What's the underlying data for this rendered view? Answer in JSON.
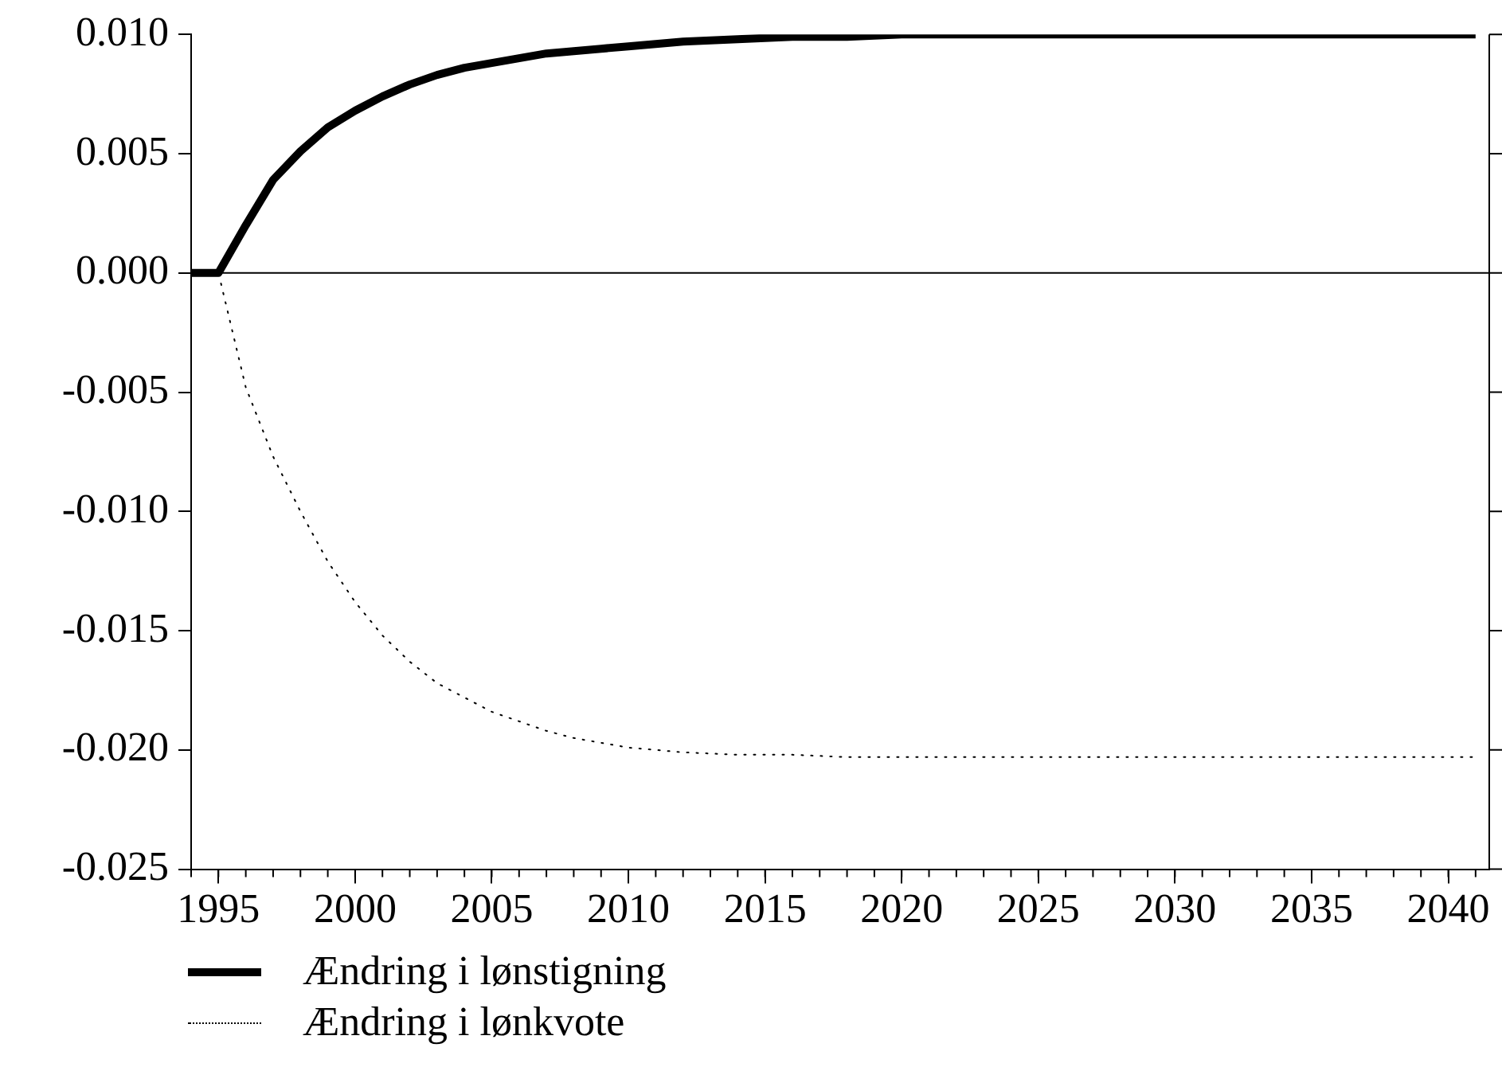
{
  "chart_data": {
    "type": "line",
    "x": [
      1994,
      1995,
      1996,
      1997,
      1998,
      1999,
      2000,
      2001,
      2002,
      2003,
      2004,
      2005,
      2006,
      2007,
      2008,
      2009,
      2010,
      2012,
      2014,
      2016,
      2018,
      2020,
      2025,
      2030,
      2035,
      2041
    ],
    "series": [
      {
        "name": "Ændring i lønstigning",
        "color": "#000000",
        "line_style": "solid",
        "values": [
          0,
          0,
          0.002,
          0.0039,
          0.0051,
          0.0061,
          0.0068,
          0.0074,
          0.0079,
          0.0083,
          0.0086,
          0.0088,
          0.009,
          0.0092,
          0.0093,
          0.0094,
          0.0095,
          0.0097,
          0.0098,
          0.0099,
          0.0099,
          0.01,
          0.01,
          0.01,
          0.01,
          0.01
        ]
      },
      {
        "name": "Ændring i lønkvote",
        "color": "#000000",
        "line_style": "dotted",
        "values": [
          0,
          0,
          -0.0048,
          -0.0077,
          -0.01,
          -0.0121,
          -0.0138,
          -0.0152,
          -0.0163,
          -0.0172,
          -0.0178,
          -0.0184,
          -0.0188,
          -0.0192,
          -0.0195,
          -0.0197,
          -0.0199,
          -0.0201,
          -0.0202,
          -0.0202,
          -0.0203,
          -0.0203,
          -0.0203,
          -0.0203,
          -0.0203,
          -0.0203
        ]
      }
    ],
    "xlim": [
      1994,
      2041.5
    ],
    "xticks": [
      1995,
      2000,
      2005,
      2010,
      2015,
      2020,
      2025,
      2030,
      2035,
      2040
    ],
    "ylim": [
      -0.025,
      0.01
    ],
    "yticks": [
      {
        "value": -0.025,
        "label": "-0.025"
      },
      {
        "value": -0.02,
        "label": "-0.020"
      },
      {
        "value": -0.015,
        "label": "-0.015"
      },
      {
        "value": -0.01,
        "label": "-0.010"
      },
      {
        "value": -0.005,
        "label": "-0.005"
      },
      {
        "value": 0,
        "label": "0.000"
      },
      {
        "value": 0.005,
        "label": "0.005"
      },
      {
        "value": 0.01,
        "label": "0.010"
      }
    ],
    "ref_lines": [
      {
        "axis": "y",
        "value": 0,
        "color": "#000000"
      }
    ],
    "grid": false,
    "legend": "bottom",
    "marker": "none"
  }
}
